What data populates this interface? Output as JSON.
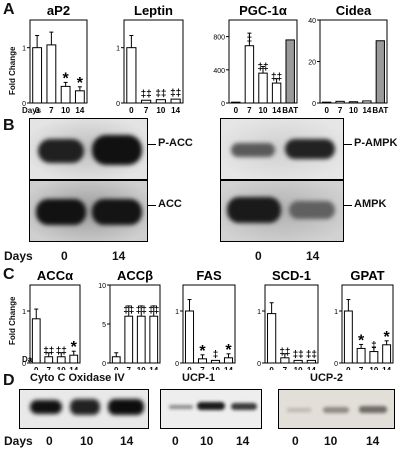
{
  "panels": [
    "A",
    "B",
    "C",
    "D"
  ],
  "colors": {
    "open_bar": "#ffffff",
    "gray_bar": "#9a9a9a",
    "blot_bg_light": "#d8d8d8",
    "band": "#1a1a1a"
  },
  "section_a": {
    "ylabel": "Fold Change",
    "days_word": "Days",
    "charts": [
      {
        "title": "aP2",
        "ticks": [
          "0",
          "1"
        ],
        "ylim": [
          0,
          1.5
        ],
        "xlabels": [
          "0",
          "7",
          "10",
          "14"
        ],
        "marks": [
          "",
          "",
          "*",
          "*"
        ]
      },
      {
        "title": "Leptin",
        "ticks": [
          "0",
          "1"
        ],
        "ylim": [
          0,
          1.5
        ],
        "xlabels": [
          "0",
          "7",
          "10",
          "14"
        ],
        "marks": [
          "",
          "‡‡",
          "‡‡",
          "‡‡"
        ]
      },
      {
        "title": "PGC-1α",
        "ticks": [
          "0",
          "400",
          "800"
        ],
        "ylim": [
          0,
          1000
        ],
        "xlabels": [
          "0",
          "7",
          "10",
          "14",
          "BAT"
        ],
        "marks": [
          "",
          "‡",
          "‡‡",
          "‡‡",
          ""
        ]
      },
      {
        "title": "Cidea",
        "ticks": [
          "0",
          "20",
          "40"
        ],
        "ylim": [
          0,
          40
        ],
        "xlabels": [
          "0",
          "7",
          "10",
          "14",
          "BAT"
        ],
        "marks": [
          "",
          "",
          "",
          "",
          ""
        ]
      }
    ]
  },
  "section_b": {
    "labels": [
      "P-ACC",
      "ACC",
      "P-AMPK",
      "AMPK"
    ],
    "days_word": "Days",
    "days": [
      "0",
      "14"
    ]
  },
  "section_c": {
    "ylabel": "Fold Change",
    "days_word": "Days",
    "charts": [
      {
        "title": "ACCα",
        "ticks": [
          "0",
          "1"
        ],
        "ylim": [
          0,
          1.5
        ],
        "xlabels": [
          "0",
          "7",
          "10",
          "14"
        ],
        "marks": [
          "",
          "‡‡",
          "‡‡",
          "*"
        ]
      },
      {
        "title": "ACCβ",
        "ticks": [
          "0",
          "5",
          "10"
        ],
        "ylim": [
          0,
          10
        ],
        "xlabels": [
          "0",
          "7",
          "10",
          "14"
        ],
        "marks": [
          "",
          "‡‡",
          "‡‡",
          "‡‡"
        ]
      },
      {
        "title": "FAS",
        "ticks": [
          "0",
          "1"
        ],
        "ylim": [
          0,
          1.5
        ],
        "xlabels": [
          "0",
          "7",
          "10",
          "14"
        ],
        "marks": [
          "",
          "*",
          "‡",
          "*"
        ]
      },
      {
        "title": "SCD-1",
        "ticks": [
          "0",
          "1"
        ],
        "ylim": [
          0,
          1.5
        ],
        "xlabels": [
          "0",
          "7",
          "10",
          "14"
        ],
        "marks": [
          "",
          "‡‡",
          "‡‡",
          "‡‡"
        ]
      },
      {
        "title": "GPAT",
        "ticks": [
          "0",
          "1"
        ],
        "ylim": [
          0,
          1.5
        ],
        "xlabels": [
          "0",
          "7",
          "10",
          "14"
        ],
        "marks": [
          "",
          "*",
          "‡",
          "*"
        ]
      }
    ]
  },
  "section_d": {
    "titles": [
      "Cyto C Oxidase IV",
      "UCP-1",
      "UCP-2"
    ],
    "days_word": "Days",
    "days": [
      "0",
      "10",
      "14"
    ]
  },
  "chart_data": [
    {
      "type": "bar",
      "title": "aP2",
      "categories": [
        "0",
        "7",
        "10",
        "14"
      ],
      "values": [
        1.0,
        1.05,
        0.3,
        0.22
      ],
      "ylabel": "Fold Change",
      "xlabel": "Days",
      "ylim": [
        0,
        1.5
      ]
    },
    {
      "type": "bar",
      "title": "Leptin",
      "categories": [
        "0",
        "7",
        "10",
        "14"
      ],
      "values": [
        1.0,
        0.05,
        0.06,
        0.07
      ],
      "ylabel": "",
      "xlabel": "Days",
      "ylim": [
        0,
        1.5
      ]
    },
    {
      "type": "bar",
      "title": "PGC-1α",
      "categories": [
        "0",
        "7",
        "10",
        "14",
        "BAT"
      ],
      "values": [
        10,
        690,
        360,
        240,
        760
      ],
      "ylabel": "",
      "xlabel": "Days",
      "ylim": [
        0,
        1000
      ]
    },
    {
      "type": "bar",
      "title": "Cidea",
      "categories": [
        "0",
        "7",
        "10",
        "14",
        "BAT"
      ],
      "values": [
        0.4,
        0.8,
        0.6,
        1.0,
        30
      ],
      "ylabel": "",
      "xlabel": "Days",
      "ylim": [
        0,
        40
      ]
    },
    {
      "type": "bar",
      "title": "ACCα",
      "categories": [
        "0",
        "7",
        "10",
        "14"
      ],
      "values": [
        0.85,
        0.12,
        0.12,
        0.15
      ],
      "ylabel": "Fold Change",
      "xlabel": "Days",
      "ylim": [
        0,
        1.5
      ]
    },
    {
      "type": "bar",
      "title": "ACCβ",
      "categories": [
        "0",
        "7",
        "10",
        "14"
      ],
      "values": [
        0.8,
        6.0,
        6.0,
        6.0
      ],
      "ylabel": "",
      "xlabel": "Days",
      "ylim": [
        0,
        10
      ]
    },
    {
      "type": "bar",
      "title": "FAS",
      "categories": [
        "0",
        "7",
        "10",
        "14"
      ],
      "values": [
        1.0,
        0.08,
        0.05,
        0.1
      ],
      "ylabel": "",
      "xlabel": "Days",
      "ylim": [
        0,
        1.5
      ]
    },
    {
      "type": "bar",
      "title": "SCD-1",
      "categories": [
        "0",
        "7",
        "10",
        "14"
      ],
      "values": [
        0.95,
        0.1,
        0.05,
        0.05
      ],
      "ylabel": "",
      "xlabel": "Days",
      "ylim": [
        0,
        1.5
      ]
    },
    {
      "type": "bar",
      "title": "GPAT",
      "categories": [
        "0",
        "7",
        "10",
        "14"
      ],
      "values": [
        1.0,
        0.28,
        0.22,
        0.35
      ],
      "ylabel": "",
      "xlabel": "Days",
      "ylim": [
        0,
        1.5
      ]
    }
  ]
}
